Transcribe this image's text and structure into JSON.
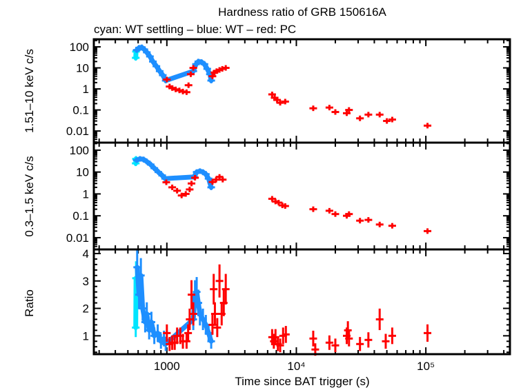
{
  "chart_data": {
    "type": "scatter",
    "title": "Hardness ratio of GRB 150616A",
    "subtitle": "cyan: WT settling – blue: WT – red: PC",
    "xlabel": "Time since BAT trigger (s)",
    "xscale": "log",
    "xlim": [
      273,
      446000
    ],
    "xticks": [
      {
        "v": 1000,
        "label": "1000"
      },
      {
        "v": 10000,
        "label": "10⁴"
      },
      {
        "v": 100000,
        "label": "10⁵"
      }
    ],
    "colors": {
      "wt_settling": "#00e5ff",
      "wt": "#1e8fff",
      "pc": "#ff0000"
    },
    "panels": [
      {
        "ylabel": "1.51–10 keV c/s",
        "yscale": "log",
        "ylim": [
          0.0028,
          229
        ],
        "yticks": [
          {
            "v": 100,
            "label": "100"
          },
          {
            "v": 10,
            "label": "10"
          },
          {
            "v": 1,
            "label": "1"
          },
          {
            "v": 0.1,
            "label": "0.1"
          },
          {
            "v": 0.01,
            "label": "0.01"
          }
        ],
        "series": {
          "wt_settling": [
            [
              575,
              30
            ],
            [
              578,
              60
            ]
          ],
          "wt": [
            [
              585,
              70
            ],
            [
              610,
              90
            ],
            [
              640,
              95
            ],
            [
              670,
              75
            ],
            [
              700,
              55
            ],
            [
              740,
              35
            ],
            [
              780,
              20
            ],
            [
              830,
              12
            ],
            [
              880,
              7
            ],
            [
              930,
              4.5
            ],
            [
              980,
              2.5
            ],
            [
              1600,
              7
            ],
            [
              1680,
              15
            ],
            [
              1750,
              20
            ],
            [
              1850,
              19
            ],
            [
              1950,
              15
            ],
            [
              2050,
              9
            ],
            [
              2150,
              5
            ],
            [
              2200,
              2.5
            ]
          ],
          "pc": [
            [
              1000,
              2.8
            ],
            [
              1050,
              1.3
            ],
            [
              1100,
              1.1
            ],
            [
              1170,
              0.95
            ],
            [
              1250,
              0.85
            ],
            [
              1330,
              0.75
            ],
            [
              1420,
              0.7
            ],
            [
              1470,
              1.5
            ],
            [
              1530,
              5
            ],
            [
              1600,
              10
            ],
            [
              2250,
              4
            ],
            [
              2330,
              6
            ],
            [
              2420,
              7
            ],
            [
              2550,
              8
            ],
            [
              2680,
              9
            ],
            [
              2850,
              10
            ],
            [
              6500,
              0.55
            ],
            [
              6800,
              0.38
            ],
            [
              7100,
              0.3
            ],
            [
              7500,
              0.22
            ],
            [
              8200,
              0.25
            ],
            [
              13500,
              0.12
            ],
            [
              18000,
              0.13
            ],
            [
              20000,
              0.08
            ],
            [
              24500,
              0.07
            ],
            [
              25500,
              0.1
            ],
            [
              31000,
              0.04
            ],
            [
              36000,
              0.06
            ],
            [
              44000,
              0.06
            ],
            [
              50000,
              0.03
            ],
            [
              55000,
              0.035
            ],
            [
              103000,
              0.018
            ]
          ]
        }
      },
      {
        "ylabel": "0.3–1.5 keV c/s",
        "yscale": "log",
        "ylim": [
          0.0029,
          221
        ],
        "yticks": [
          {
            "v": 100,
            "label": "100"
          },
          {
            "v": 10,
            "label": "10"
          },
          {
            "v": 1,
            "label": "1"
          },
          {
            "v": 0.1,
            "label": "0.1"
          },
          {
            "v": 0.01,
            "label": "0.01"
          }
        ],
        "series": {
          "wt_settling": [
            [
              575,
              25
            ],
            [
              578,
              40
            ]
          ],
          "wt": [
            [
              585,
              35
            ],
            [
              620,
              40
            ],
            [
              660,
              38
            ],
            [
              700,
              30
            ],
            [
              750,
              22
            ],
            [
              800,
              15
            ],
            [
              860,
              10
            ],
            [
              920,
              7
            ],
            [
              970,
              5
            ],
            [
              1620,
              6
            ],
            [
              1700,
              10
            ],
            [
              1800,
              11
            ],
            [
              1900,
              10
            ],
            [
              2000,
              8
            ],
            [
              2100,
              5
            ],
            [
              2200,
              2
            ]
          ],
          "pc": [
            [
              990,
              3.4
            ],
            [
              1100,
              2
            ],
            [
              1200,
              1.4
            ],
            [
              1300,
              0.85
            ],
            [
              1400,
              1
            ],
            [
              1500,
              1.6
            ],
            [
              1550,
              3
            ],
            [
              1650,
              5.5
            ],
            [
              2250,
              3.5
            ],
            [
              2400,
              4.5
            ],
            [
              2550,
              6
            ],
            [
              2700,
              4.5
            ],
            [
              6500,
              0.6
            ],
            [
              6900,
              0.45
            ],
            [
              7300,
              0.4
            ],
            [
              7800,
              0.3
            ],
            [
              8200,
              0.28
            ],
            [
              13500,
              0.2
            ],
            [
              18000,
              0.17
            ],
            [
              20000,
              0.12
            ],
            [
              24500,
              0.1
            ],
            [
              25500,
              0.12
            ],
            [
              31000,
              0.06
            ],
            [
              36000,
              0.065
            ],
            [
              44000,
              0.04
            ],
            [
              55000,
              0.035
            ],
            [
              103000,
              0.02
            ]
          ]
        }
      },
      {
        "ylabel": "Ratio",
        "yscale": "linear",
        "ylim": [
          0.33,
          4.15
        ],
        "yticks": [
          {
            "v": 1,
            "label": "1"
          },
          {
            "v": 2,
            "label": "2"
          },
          {
            "v": 3,
            "label": "3"
          },
          {
            "v": 4,
            "label": "4"
          }
        ],
        "series": {
          "wt_settling": [
            [
              575,
              1.3
            ],
            [
              578,
              3.1
            ]
          ],
          "wt": [
            [
              590,
              3.5
            ],
            [
              610,
              2.5
            ],
            [
              630,
              3.2
            ],
            [
              650,
              2
            ],
            [
              680,
              1.5
            ],
            [
              700,
              1.8
            ],
            [
              730,
              1.2
            ],
            [
              760,
              1.5
            ],
            [
              800,
              1
            ],
            [
              850,
              1.1
            ],
            [
              900,
              0.8
            ],
            [
              950,
              0.9
            ],
            [
              980,
              0.7
            ],
            [
              1600,
              1.6
            ],
            [
              1650,
              2.5
            ],
            [
              1700,
              2.6
            ],
            [
              1750,
              2.2
            ],
            [
              1800,
              1.8
            ],
            [
              1900,
              1.6
            ],
            [
              2000,
              1.4
            ],
            [
              2100,
              1.1
            ],
            [
              2200,
              0.8
            ]
          ],
          "pc": [
            [
              1000,
              1.1
            ],
            [
              1050,
              0.7
            ],
            [
              1100,
              0.75
            ],
            [
              1150,
              0.75
            ],
            [
              1200,
              1
            ],
            [
              1270,
              1
            ],
            [
              1330,
              0.8
            ],
            [
              1420,
              0.8
            ],
            [
              1460,
              1.1
            ],
            [
              1500,
              1.6
            ],
            [
              1550,
              2.5
            ],
            [
              1600,
              1.8
            ],
            [
              2250,
              1.4
            ],
            [
              2300,
              2.7
            ],
            [
              2350,
              1.8
            ],
            [
              2450,
              1.3
            ],
            [
              2550,
              3
            ],
            [
              2650,
              1.8
            ],
            [
              2750,
              2.2
            ],
            [
              2850,
              2.7
            ],
            [
              6500,
              0.95
            ],
            [
              6700,
              0.8
            ],
            [
              6900,
              0.95
            ],
            [
              7200,
              0.7
            ],
            [
              7500,
              0.65
            ],
            [
              7900,
              1
            ],
            [
              8300,
              1.05
            ],
            [
              13500,
              0.9
            ],
            [
              14000,
              0.5
            ],
            [
              18000,
              0.75
            ],
            [
              20000,
              0.65
            ],
            [
              24500,
              1
            ],
            [
              25000,
              1.2
            ],
            [
              25500,
              0.9
            ],
            [
              31000,
              0.7
            ],
            [
              36000,
              0.85
            ],
            [
              44000,
              1.6
            ],
            [
              49000,
              0.8
            ],
            [
              55000,
              1
            ],
            [
              103000,
              1.1
            ]
          ]
        }
      }
    ]
  }
}
